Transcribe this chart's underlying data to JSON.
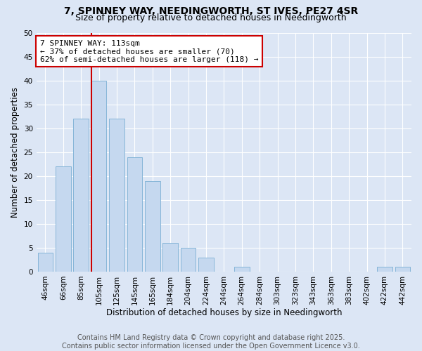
{
  "title1": "7, SPINNEY WAY, NEEDINGWORTH, ST IVES, PE27 4SR",
  "title2": "Size of property relative to detached houses in Needingworth",
  "xlabel": "Distribution of detached houses by size in Needingworth",
  "ylabel": "Number of detached properties",
  "categories": [
    "46sqm",
    "66sqm",
    "85sqm",
    "105sqm",
    "125sqm",
    "145sqm",
    "165sqm",
    "184sqm",
    "204sqm",
    "224sqm",
    "244sqm",
    "264sqm",
    "284sqm",
    "303sqm",
    "323sqm",
    "343sqm",
    "363sqm",
    "383sqm",
    "402sqm",
    "422sqm",
    "442sqm"
  ],
  "values": [
    4,
    22,
    32,
    40,
    32,
    24,
    19,
    6,
    5,
    3,
    0,
    1,
    0,
    0,
    0,
    0,
    0,
    0,
    0,
    1,
    1
  ],
  "bar_color": "#c5d8ef",
  "bar_edge_color": "#7aafd4",
  "vline_color": "#cc0000",
  "annotation_line1": "7 SPINNEY WAY: 113sqm",
  "annotation_line2": "← 37% of detached houses are smaller (70)",
  "annotation_line3": "62% of semi-detached houses are larger (118) →",
  "annotation_box_color": "white",
  "annotation_box_edge": "#cc0000",
  "ylim": [
    0,
    50
  ],
  "yticks": [
    0,
    5,
    10,
    15,
    20,
    25,
    30,
    35,
    40,
    45,
    50
  ],
  "background_color": "#dce6f5",
  "grid_color": "#ffffff",
  "footer_text": "Contains HM Land Registry data © Crown copyright and database right 2025.\nContains public sector information licensed under the Open Government Licence v3.0.",
  "title_fontsize": 10,
  "subtitle_fontsize": 9,
  "axis_label_fontsize": 8.5,
  "tick_fontsize": 7.5,
  "annotation_fontsize": 8,
  "footer_fontsize": 7
}
